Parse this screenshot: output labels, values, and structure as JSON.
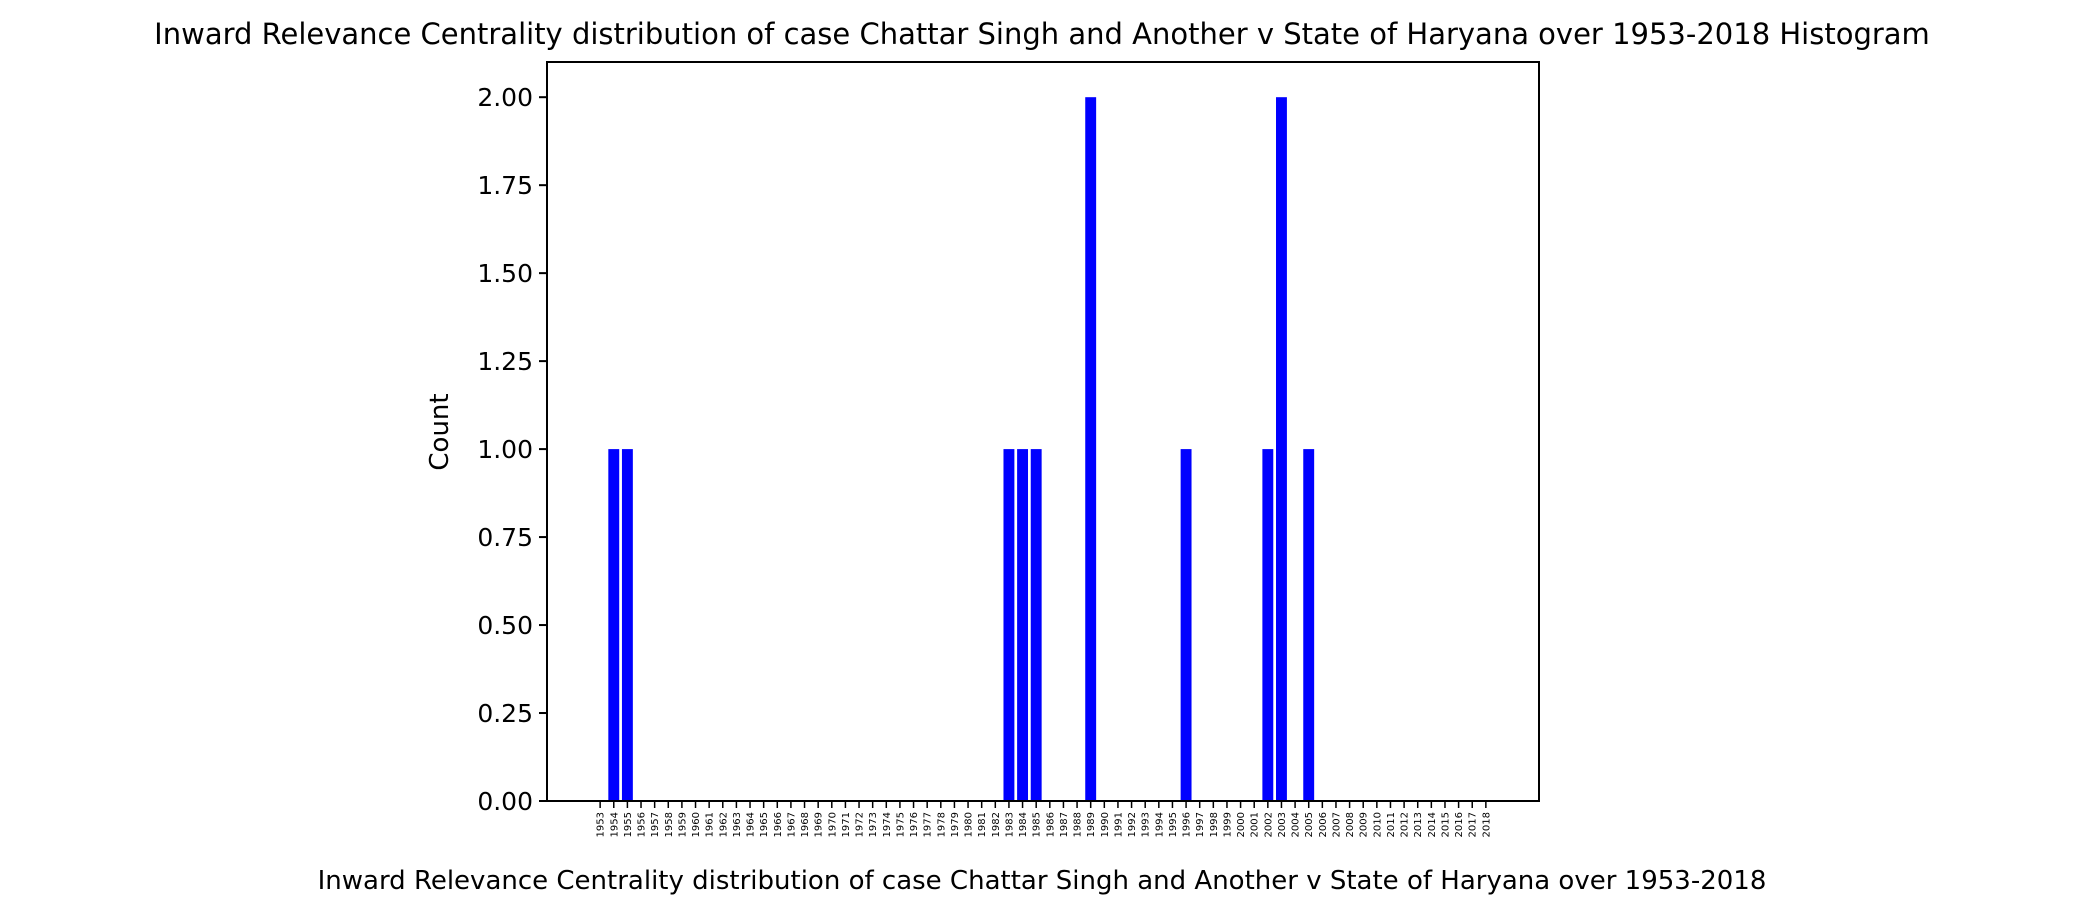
{
  "chart_data": {
    "type": "bar",
    "title": "Inward Relevance Centrality distribution of case Chattar Singh and Another v State of Haryana over 1953-2018 Histogram",
    "xlabel": "Inward Relevance Centrality distribution of case Chattar Singh and Another v State of Haryana over 1953-2018",
    "ylabel": "Count",
    "ylim": [
      0,
      2.1
    ],
    "yticks": [
      "0.00",
      "0.25",
      "0.50",
      "0.75",
      "1.00",
      "1.25",
      "1.50",
      "1.75",
      "2.00"
    ],
    "bar_color": "#0000ff",
    "categories": [
      "1953",
      "1954",
      "1955",
      "1956",
      "1957",
      "1958",
      "1959",
      "1960",
      "1961",
      "1962",
      "1963",
      "1964",
      "1965",
      "1966",
      "1967",
      "1968",
      "1969",
      "1970",
      "1971",
      "1972",
      "1973",
      "1974",
      "1975",
      "1976",
      "1977",
      "1978",
      "1979",
      "1980",
      "1981",
      "1982",
      "1983",
      "1984",
      "1985",
      "1986",
      "1987",
      "1988",
      "1989",
      "1990",
      "1991",
      "1992",
      "1993",
      "1994",
      "1995",
      "1996",
      "1997",
      "1998",
      "1999",
      "2000",
      "2001",
      "2002",
      "2003",
      "2004",
      "2005",
      "2006",
      "2007",
      "2008",
      "2009",
      "2010",
      "2011",
      "2012",
      "2013",
      "2014",
      "2015",
      "2016",
      "2017",
      "2018"
    ],
    "bars": [
      {
        "x": 1954,
        "value": 1
      },
      {
        "x": 1955,
        "value": 1
      },
      {
        "x": 1983,
        "value": 1
      },
      {
        "x": 1984,
        "value": 1
      },
      {
        "x": 1985,
        "value": 1
      },
      {
        "x": 1989,
        "value": 2
      },
      {
        "x": 1996,
        "value": 1
      },
      {
        "x": 2002,
        "value": 1
      },
      {
        "x": 2003,
        "value": 2
      },
      {
        "x": 2005,
        "value": 1
      }
    ]
  }
}
